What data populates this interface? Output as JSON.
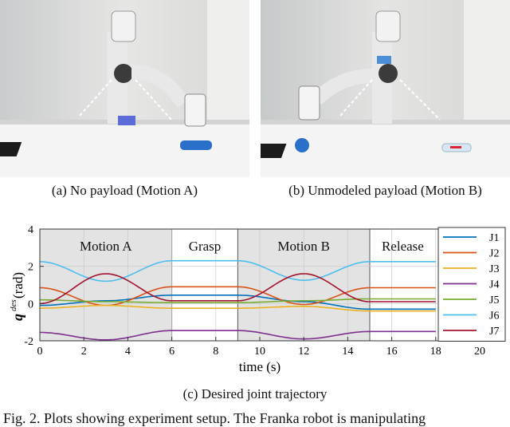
{
  "figure": {
    "subcaption_a": "(a) No payload (Motion A)",
    "subcaption_b": "(b) Unmodeled payload (Motion B)",
    "subcaption_c": "(c) Desired joint trajectory",
    "caption_text": "Fig. 2.   Plots showing experiment setup. The Franka robot is manipulating"
  },
  "chart_data": {
    "type": "line",
    "xlabel": "time (s)",
    "ylabel_main": "q",
    "ylabel_sup": "des",
    "ylabel_unit": "(rad)",
    "xlim": [
      0,
      20
    ],
    "ylim": [
      -2,
      4
    ],
    "xticks": [
      "0",
      "2",
      "4",
      "6",
      "8",
      "10",
      "12",
      "14",
      "16",
      "18",
      "20"
    ],
    "yticks": [
      "-2",
      "0",
      "2",
      "4"
    ],
    "grid": true,
    "legend_position": "right",
    "phases": [
      {
        "label": "Motion A",
        "start": 0,
        "end": 6,
        "shaded": true
      },
      {
        "label": "Grasp",
        "start": 6,
        "end": 9,
        "shaded": false
      },
      {
        "label": "Motion B",
        "start": 9,
        "end": 15,
        "shaded": true
      },
      {
        "label": "Release",
        "start": 15,
        "end": 18,
        "shaded": false
      }
    ],
    "series": [
      {
        "name": "J1",
        "color": "#0072BD",
        "x": [
          0,
          3,
          6,
          9,
          12,
          15,
          18
        ],
        "y": [
          -0.1,
          0.15,
          0.45,
          0.45,
          0.1,
          -0.3,
          -0.3
        ]
      },
      {
        "name": "J2",
        "color": "#D95319",
        "x": [
          0,
          3,
          6,
          9,
          12,
          15,
          18
        ],
        "y": [
          0.85,
          -0.1,
          0.9,
          0.9,
          -0.05,
          0.85,
          0.85
        ]
      },
      {
        "name": "J3",
        "color": "#EDB120",
        "x": [
          0,
          3,
          6,
          9,
          12,
          15,
          18
        ],
        "y": [
          -0.25,
          -0.1,
          -0.25,
          -0.25,
          -0.15,
          -0.4,
          -0.4
        ]
      },
      {
        "name": "J4",
        "color": "#7E2F8E",
        "x": [
          0,
          3,
          6,
          9,
          12,
          15,
          18
        ],
        "y": [
          -1.55,
          -1.95,
          -1.45,
          -1.45,
          -1.9,
          -1.5,
          -1.5
        ]
      },
      {
        "name": "J5",
        "color": "#77AC30",
        "x": [
          0,
          3,
          6,
          9,
          12,
          15,
          18
        ],
        "y": [
          0.2,
          0.1,
          0.05,
          0.05,
          0.15,
          0.25,
          0.25
        ]
      },
      {
        "name": "J6",
        "color": "#4DBEEE",
        "x": [
          0,
          3,
          6,
          9,
          12,
          15,
          18
        ],
        "y": [
          2.25,
          1.2,
          2.3,
          2.3,
          1.25,
          2.25,
          2.25
        ]
      },
      {
        "name": "J7",
        "color": "#A2142F",
        "x": [
          0,
          3,
          6,
          9,
          12,
          15,
          18
        ],
        "y": [
          0.0,
          1.6,
          0.15,
          0.15,
          1.6,
          0.1,
          0.1
        ]
      }
    ]
  }
}
